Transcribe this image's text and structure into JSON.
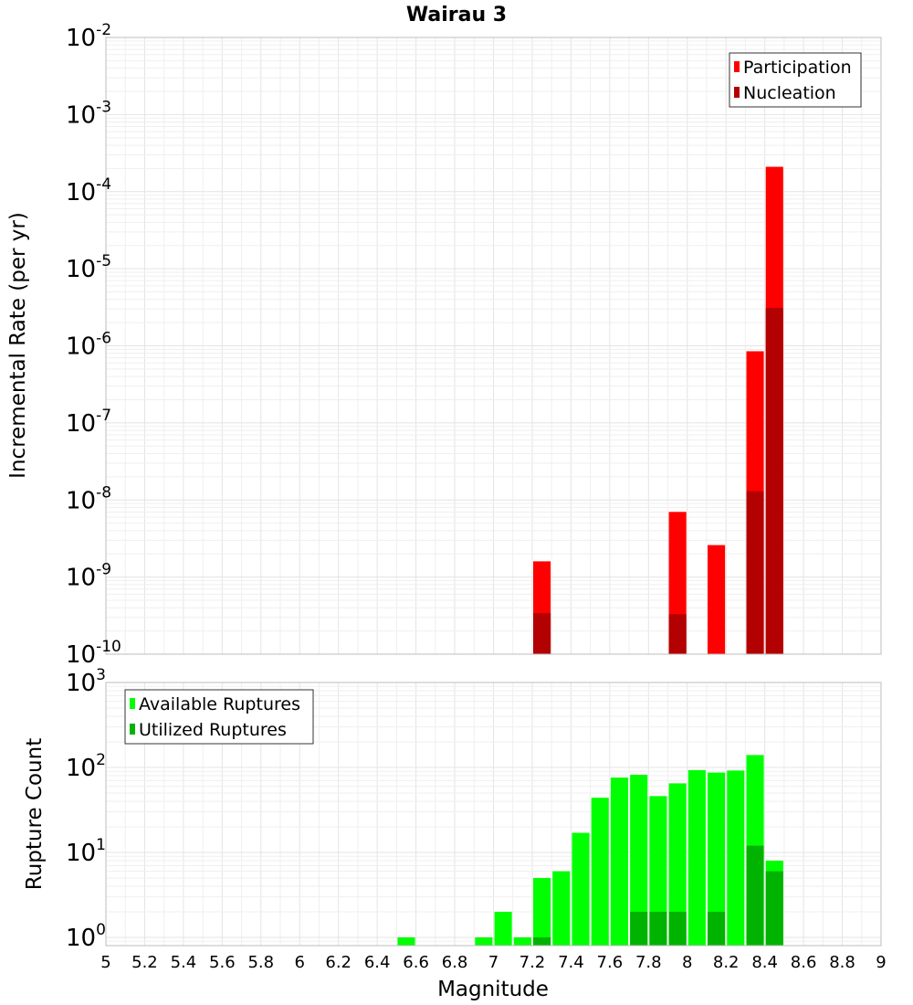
{
  "title": "Wairau 3",
  "colors": {
    "participation": "#ff0000",
    "nucleation": "#b30000",
    "available": "#00ff00",
    "utilized": "#00b300",
    "grid_major": "#e4e4e4",
    "grid_minor": "#efefef",
    "frame": "#bdbdbd"
  },
  "chart_data": [
    {
      "type": "bar",
      "panel": "top",
      "title": "Wairau 3",
      "xlabel": "",
      "ylabel": "Incremental Rate (per yr)",
      "yscale": "log",
      "xlim": [
        5,
        9
      ],
      "ylim": [
        1e-10,
        0.01
      ],
      "grid": true,
      "legend_position": "top-right",
      "bar_width": 0.09,
      "y_tick_labels": [
        {
          "base": "10",
          "exp": "-10"
        },
        {
          "base": "10",
          "exp": "-9"
        },
        {
          "base": "10",
          "exp": "-8"
        },
        {
          "base": "10",
          "exp": "-7"
        },
        {
          "base": "10",
          "exp": "-6"
        },
        {
          "base": "10",
          "exp": "-5"
        },
        {
          "base": "10",
          "exp": "-4"
        },
        {
          "base": "10",
          "exp": "-3"
        },
        {
          "base": "10",
          "exp": "-2"
        }
      ],
      "series": [
        {
          "name": "Participation",
          "x": [
            7.25,
            7.95,
            8.15,
            8.35,
            8.45
          ],
          "values": [
            1.6e-09,
            7e-09,
            2.6e-09,
            8.5e-07,
            0.00021
          ]
        },
        {
          "name": "Nucleation",
          "x": [
            7.25,
            7.95,
            8.35,
            8.45
          ],
          "values": [
            3.4e-10,
            3.3e-10,
            1.3e-08,
            3.1e-06
          ]
        }
      ]
    },
    {
      "type": "bar",
      "panel": "bottom",
      "xlabel": "Magnitude",
      "ylabel": "Rupture Count",
      "yscale": "log",
      "xlim": [
        5,
        9
      ],
      "ylim": [
        0.8,
        1000
      ],
      "grid": true,
      "legend_position": "top-left",
      "bar_width": 0.09,
      "x_tick_labels": [
        "5",
        "5.2",
        "5.4",
        "5.6",
        "5.8",
        "6",
        "6.2",
        "6.4",
        "6.6",
        "6.8",
        "7",
        "7.2",
        "7.4",
        "7.6",
        "7.8",
        "8",
        "8.2",
        "8.4",
        "8.6",
        "8.8",
        "9"
      ],
      "y_tick_labels": [
        {
          "base": "10",
          "exp": "0"
        },
        {
          "base": "10",
          "exp": "1"
        },
        {
          "base": "10",
          "exp": "2"
        },
        {
          "base": "10",
          "exp": "3"
        }
      ],
      "series": [
        {
          "name": "Available Ruptures",
          "x": [
            6.55,
            6.95,
            7.05,
            7.15,
            7.25,
            7.35,
            7.45,
            7.55,
            7.65,
            7.75,
            7.85,
            7.95,
            8.05,
            8.15,
            8.25,
            8.35,
            8.45
          ],
          "values": [
            1,
            1,
            2,
            1,
            5,
            6,
            17,
            44,
            76,
            82,
            46,
            65,
            93,
            87,
            92,
            140,
            8
          ]
        },
        {
          "name": "Utilized Ruptures",
          "x": [
            7.25,
            7.75,
            7.85,
            7.95,
            8.15,
            8.35,
            8.45
          ],
          "values": [
            1,
            2,
            2,
            2,
            2,
            12,
            6
          ]
        }
      ]
    }
  ]
}
